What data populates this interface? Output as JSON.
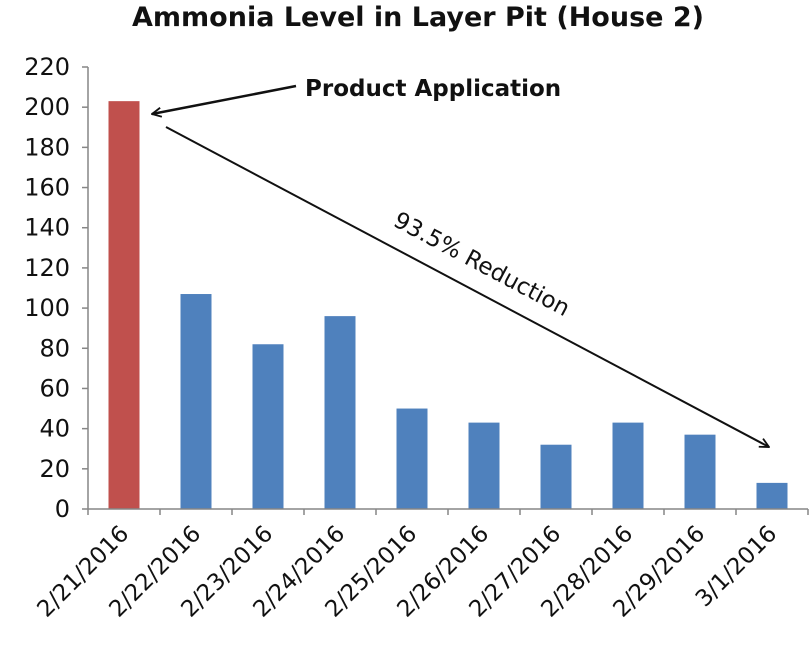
{
  "chart_data": {
    "type": "bar",
    "title": "Ammonia Level in Layer Pit (House 2)",
    "xlabel": "",
    "ylabel": "",
    "categories": [
      "2/21/2016",
      "2/22/2016",
      "2/23/2016",
      "2/24/2016",
      "2/25/2016",
      "2/26/2016",
      "2/27/2016",
      "2/28/2016",
      "2/29/2016",
      "3/1/2016"
    ],
    "values": [
      203,
      107,
      82,
      96,
      50,
      43,
      32,
      43,
      37,
      13
    ],
    "ylim": [
      0,
      220
    ],
    "yticks": [
      0,
      20,
      40,
      60,
      80,
      100,
      120,
      140,
      160,
      180,
      200,
      220
    ],
    "grid": false,
    "legend": "none",
    "colors": {
      "highlight": "#c0504d",
      "default": "#4f81bd",
      "highlight_index": 0
    },
    "annotations": [
      {
        "text": "Product Application",
        "points_to": "2/21/2016"
      },
      {
        "text": "93.5% Reduction",
        "from": "2/21/2016",
        "to": "3/1/2016"
      }
    ]
  }
}
